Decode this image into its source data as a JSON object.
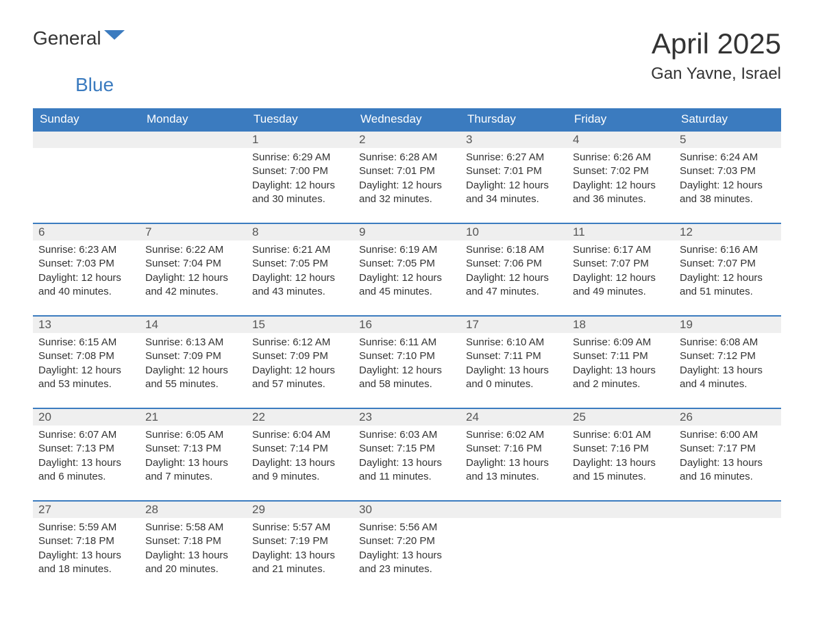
{
  "brand": {
    "text1": "General",
    "text2": "Blue"
  },
  "title": {
    "monthYear": "April 2025",
    "location": "Gan Yavne, Israel"
  },
  "colors": {
    "accent": "#3b7bbf",
    "headerBg": "#3b7bbf",
    "headerText": "#ffffff",
    "dayNumBg": "#efefef",
    "bodyText": "#333333",
    "background": "#ffffff"
  },
  "dayHeaders": [
    "Sunday",
    "Monday",
    "Tuesday",
    "Wednesday",
    "Thursday",
    "Friday",
    "Saturday"
  ],
  "weeks": [
    [
      null,
      null,
      {
        "num": "1",
        "sunrise": "6:29 AM",
        "sunset": "7:00 PM",
        "daylight": "12 hours and 30 minutes."
      },
      {
        "num": "2",
        "sunrise": "6:28 AM",
        "sunset": "7:01 PM",
        "daylight": "12 hours and 32 minutes."
      },
      {
        "num": "3",
        "sunrise": "6:27 AM",
        "sunset": "7:01 PM",
        "daylight": "12 hours and 34 minutes."
      },
      {
        "num": "4",
        "sunrise": "6:26 AM",
        "sunset": "7:02 PM",
        "daylight": "12 hours and 36 minutes."
      },
      {
        "num": "5",
        "sunrise": "6:24 AM",
        "sunset": "7:03 PM",
        "daylight": "12 hours and 38 minutes."
      }
    ],
    [
      {
        "num": "6",
        "sunrise": "6:23 AM",
        "sunset": "7:03 PM",
        "daylight": "12 hours and 40 minutes."
      },
      {
        "num": "7",
        "sunrise": "6:22 AM",
        "sunset": "7:04 PM",
        "daylight": "12 hours and 42 minutes."
      },
      {
        "num": "8",
        "sunrise": "6:21 AM",
        "sunset": "7:05 PM",
        "daylight": "12 hours and 43 minutes."
      },
      {
        "num": "9",
        "sunrise": "6:19 AM",
        "sunset": "7:05 PM",
        "daylight": "12 hours and 45 minutes."
      },
      {
        "num": "10",
        "sunrise": "6:18 AM",
        "sunset": "7:06 PM",
        "daylight": "12 hours and 47 minutes."
      },
      {
        "num": "11",
        "sunrise": "6:17 AM",
        "sunset": "7:07 PM",
        "daylight": "12 hours and 49 minutes."
      },
      {
        "num": "12",
        "sunrise": "6:16 AM",
        "sunset": "7:07 PM",
        "daylight": "12 hours and 51 minutes."
      }
    ],
    [
      {
        "num": "13",
        "sunrise": "6:15 AM",
        "sunset": "7:08 PM",
        "daylight": "12 hours and 53 minutes."
      },
      {
        "num": "14",
        "sunrise": "6:13 AM",
        "sunset": "7:09 PM",
        "daylight": "12 hours and 55 minutes."
      },
      {
        "num": "15",
        "sunrise": "6:12 AM",
        "sunset": "7:09 PM",
        "daylight": "12 hours and 57 minutes."
      },
      {
        "num": "16",
        "sunrise": "6:11 AM",
        "sunset": "7:10 PM",
        "daylight": "12 hours and 58 minutes."
      },
      {
        "num": "17",
        "sunrise": "6:10 AM",
        "sunset": "7:11 PM",
        "daylight": "13 hours and 0 minutes."
      },
      {
        "num": "18",
        "sunrise": "6:09 AM",
        "sunset": "7:11 PM",
        "daylight": "13 hours and 2 minutes."
      },
      {
        "num": "19",
        "sunrise": "6:08 AM",
        "sunset": "7:12 PM",
        "daylight": "13 hours and 4 minutes."
      }
    ],
    [
      {
        "num": "20",
        "sunrise": "6:07 AM",
        "sunset": "7:13 PM",
        "daylight": "13 hours and 6 minutes."
      },
      {
        "num": "21",
        "sunrise": "6:05 AM",
        "sunset": "7:13 PM",
        "daylight": "13 hours and 7 minutes."
      },
      {
        "num": "22",
        "sunrise": "6:04 AM",
        "sunset": "7:14 PM",
        "daylight": "13 hours and 9 minutes."
      },
      {
        "num": "23",
        "sunrise": "6:03 AM",
        "sunset": "7:15 PM",
        "daylight": "13 hours and 11 minutes."
      },
      {
        "num": "24",
        "sunrise": "6:02 AM",
        "sunset": "7:16 PM",
        "daylight": "13 hours and 13 minutes."
      },
      {
        "num": "25",
        "sunrise": "6:01 AM",
        "sunset": "7:16 PM",
        "daylight": "13 hours and 15 minutes."
      },
      {
        "num": "26",
        "sunrise": "6:00 AM",
        "sunset": "7:17 PM",
        "daylight": "13 hours and 16 minutes."
      }
    ],
    [
      {
        "num": "27",
        "sunrise": "5:59 AM",
        "sunset": "7:18 PM",
        "daylight": "13 hours and 18 minutes."
      },
      {
        "num": "28",
        "sunrise": "5:58 AM",
        "sunset": "7:18 PM",
        "daylight": "13 hours and 20 minutes."
      },
      {
        "num": "29",
        "sunrise": "5:57 AM",
        "sunset": "7:19 PM",
        "daylight": "13 hours and 21 minutes."
      },
      {
        "num": "30",
        "sunrise": "5:56 AM",
        "sunset": "7:20 PM",
        "daylight": "13 hours and 23 minutes."
      },
      null,
      null,
      null
    ]
  ],
  "labels": {
    "sunrise": "Sunrise: ",
    "sunset": "Sunset: ",
    "daylight": "Daylight: "
  }
}
